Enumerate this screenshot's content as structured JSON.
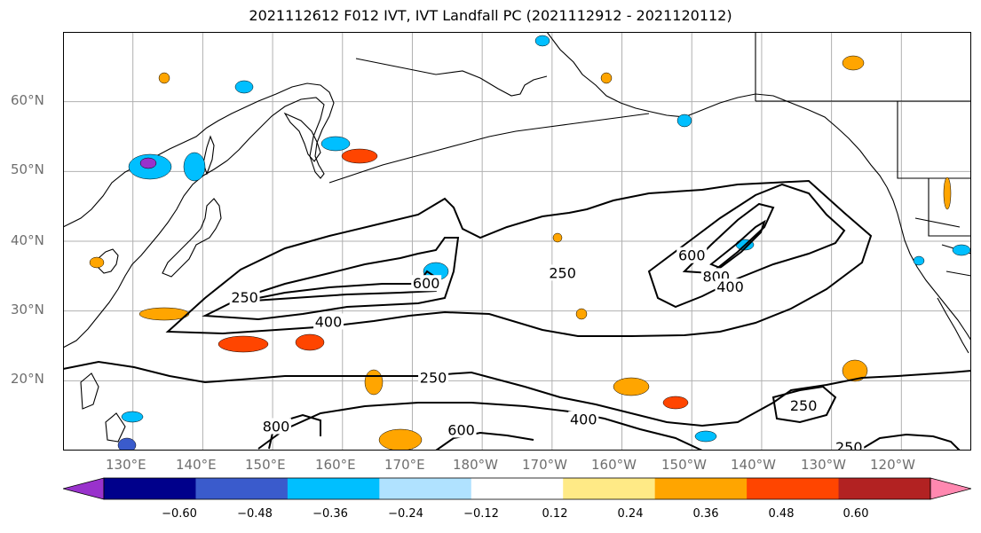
{
  "title": "2021112612 F012 IVT, IVT Landfall PC (2021112912 - 2021120112)",
  "map": {
    "lat_labels": [
      "60°N",
      "50°N",
      "40°N",
      "30°N",
      "20°N"
    ],
    "lon_labels": [
      "130°E",
      "140°E",
      "150°E",
      "160°E",
      "170°E",
      "180°W",
      "170°W",
      "160°W",
      "150°W",
      "140°W",
      "130°W",
      "120°W"
    ],
    "extent": {
      "lon_min": 120,
      "lon_max": 250,
      "lat_min": 10,
      "lat_max": 70
    },
    "gridlines": true,
    "contour_levels": [
      "250",
      "400",
      "600",
      "800"
    ],
    "contour_labels": [
      {
        "text": "250",
        "lon": 146,
        "lat": 32
      },
      {
        "text": "400",
        "lon": 158,
        "lat": 28.5
      },
      {
        "text": "600",
        "lon": 172,
        "lat": 34
      },
      {
        "text": "250",
        "lon": 191.5,
        "lat": 35.5
      },
      {
        "text": "600",
        "lon": 210,
        "lat": 38
      },
      {
        "text": "800",
        "lon": 213.5,
        "lat": 35
      },
      {
        "text": "400",
        "lon": 215.5,
        "lat": 33.5
      },
      {
        "text": "250",
        "lon": 173,
        "lat": 20.5
      },
      {
        "text": "400",
        "lon": 194.5,
        "lat": 14.5
      },
      {
        "text": "600",
        "lon": 177,
        "lat": 13
      },
      {
        "text": "800",
        "lon": 150.5,
        "lat": 13.5
      },
      {
        "text": "250",
        "lon": 226,
        "lat": 16.5
      },
      {
        "text": "250",
        "lon": 232.5,
        "lat": 10.5
      }
    ]
  },
  "colorbar": {
    "tick_labels": [
      "−0.60",
      "−0.48",
      "−0.36",
      "−0.24",
      "−0.12",
      "0.12",
      "0.24",
      "0.36",
      "0.48",
      "0.60"
    ],
    "colors": [
      "#9932cc",
      "#00008b",
      "#3a5bcc",
      "#00bfff",
      "#b0e2ff",
      "#ffffff",
      "#ffea86",
      "#ffa500",
      "#ff4500",
      "#b22222",
      "#ff88b0"
    ],
    "extend": "both"
  }
}
